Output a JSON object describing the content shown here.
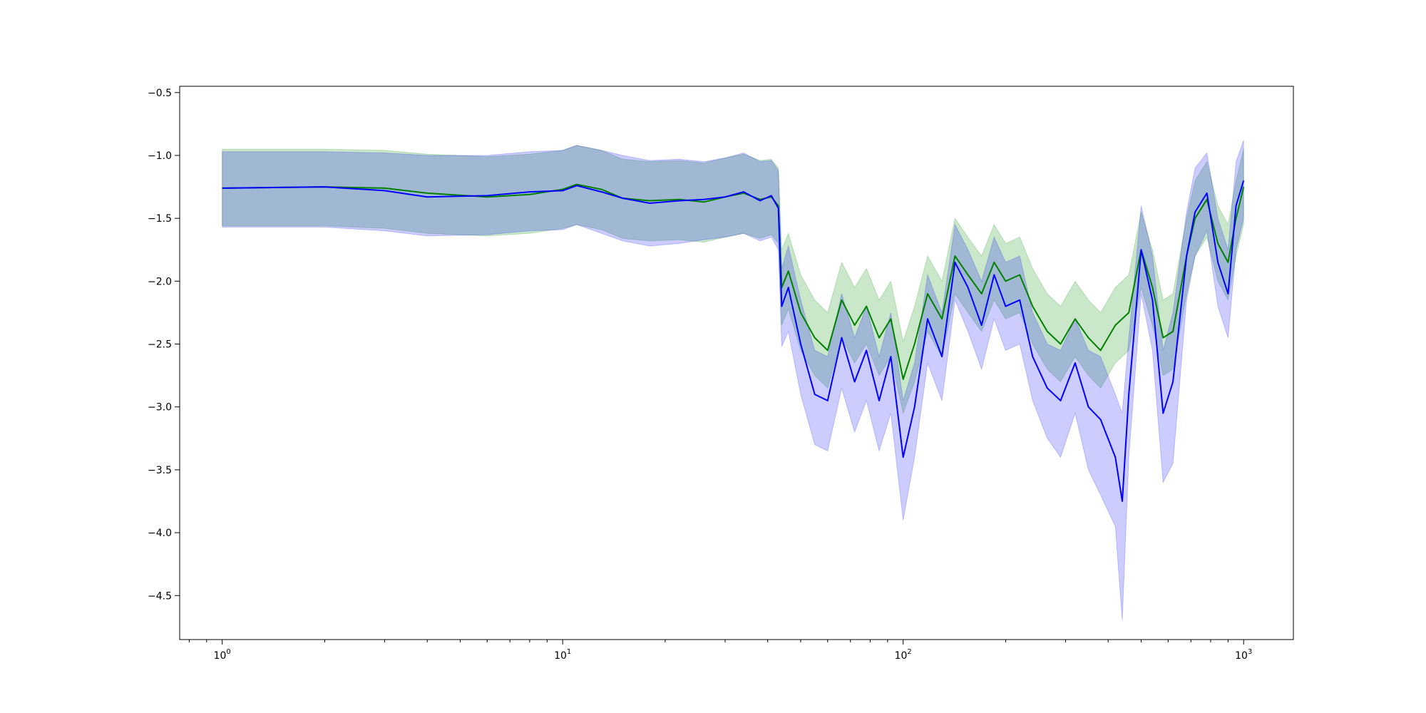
{
  "chart_data": {
    "type": "line",
    "title": "",
    "xlabel": "",
    "ylabel": "",
    "x_scale": "log",
    "xlim": [
      0.75,
      1400
    ],
    "ylim": [
      -4.85,
      -0.45
    ],
    "grid": false,
    "legend": "none",
    "x_ticks": [
      {
        "value": 1,
        "base": "10",
        "exp": "0"
      },
      {
        "value": 10,
        "base": "10",
        "exp": "1"
      },
      {
        "value": 100,
        "base": "10",
        "exp": "2"
      },
      {
        "value": 1000,
        "base": "10",
        "exp": "3"
      }
    ],
    "y_ticks": [
      {
        "value": -0.5,
        "label": "−0.5"
      },
      {
        "value": -1.0,
        "label": "−1.0"
      },
      {
        "value": -1.5,
        "label": "−1.5"
      },
      {
        "value": -2.0,
        "label": "−2.0"
      },
      {
        "value": -2.5,
        "label": "−2.5"
      },
      {
        "value": -3.0,
        "label": "−3.0"
      },
      {
        "value": -3.5,
        "label": "−3.5"
      },
      {
        "value": -4.0,
        "label": "−4.0"
      },
      {
        "value": -4.5,
        "label": "−4.5"
      }
    ],
    "series": [
      {
        "color": "#008000",
        "band_color": "#2ca02c",
        "band_opacity": 0.25,
        "x": [
          1,
          2,
          3,
          4,
          6,
          8,
          10,
          11,
          13,
          15,
          18,
          22,
          26,
          30,
          34,
          38,
          41,
          43,
          44,
          46,
          50,
          55,
          60,
          66,
          72,
          78,
          85,
          92,
          100,
          108,
          118,
          130,
          142,
          155,
          170,
          185,
          200,
          220,
          240,
          265,
          290,
          320,
          350,
          380,
          420,
          460,
          500,
          540,
          580,
          620,
          680,
          720,
          780,
          840,
          900,
          950,
          1000
        ],
        "y": [
          -1.26,
          -1.25,
          -1.26,
          -1.3,
          -1.33,
          -1.31,
          -1.27,
          -1.23,
          -1.27,
          -1.34,
          -1.36,
          -1.35,
          -1.37,
          -1.33,
          -1.3,
          -1.35,
          -1.33,
          -1.4,
          -2.05,
          -1.92,
          -2.25,
          -2.45,
          -2.55,
          -2.15,
          -2.35,
          -2.2,
          -2.45,
          -2.3,
          -2.78,
          -2.5,
          -2.1,
          -2.3,
          -1.8,
          -1.95,
          -2.1,
          -1.85,
          -2.0,
          -1.95,
          -2.2,
          -2.4,
          -2.5,
          -2.3,
          -2.45,
          -2.55,
          -2.35,
          -2.25,
          -1.75,
          -2.05,
          -2.45,
          -2.4,
          -1.8,
          -1.5,
          -1.35,
          -1.7,
          -1.85,
          -1.5,
          -1.25
        ],
        "lower": [
          -1.56,
          -1.56,
          -1.58,
          -1.62,
          -1.64,
          -1.62,
          -1.58,
          -1.55,
          -1.59,
          -1.66,
          -1.68,
          -1.67,
          -1.69,
          -1.65,
          -1.62,
          -1.66,
          -1.63,
          -1.7,
          -2.35,
          -2.22,
          -2.55,
          -2.75,
          -2.85,
          -2.45,
          -2.65,
          -2.5,
          -2.75,
          -2.6,
          -3.05,
          -2.8,
          -2.4,
          -2.6,
          -2.1,
          -2.25,
          -2.4,
          -2.15,
          -2.3,
          -2.25,
          -2.5,
          -2.7,
          -2.8,
          -2.6,
          -2.75,
          -2.85,
          -2.65,
          -2.55,
          -2.05,
          -2.35,
          -2.75,
          -2.7,
          -2.1,
          -1.8,
          -1.65,
          -2.0,
          -2.15,
          -1.8,
          -1.55
        ],
        "upper": [
          -0.95,
          -0.95,
          -0.96,
          -0.99,
          -1.01,
          -0.99,
          -0.96,
          -0.92,
          -0.96,
          -1.03,
          -1.05,
          -1.04,
          -1.06,
          -1.02,
          -0.99,
          -1.04,
          -1.03,
          -1.1,
          -1.75,
          -1.62,
          -1.95,
          -2.15,
          -2.25,
          -1.85,
          -2.05,
          -1.9,
          -2.15,
          -2.0,
          -2.48,
          -2.2,
          -1.8,
          -2.0,
          -1.5,
          -1.65,
          -1.8,
          -1.55,
          -1.7,
          -1.65,
          -1.9,
          -2.1,
          -2.2,
          -2.0,
          -2.15,
          -2.25,
          -2.05,
          -1.95,
          -1.45,
          -1.75,
          -2.15,
          -2.1,
          -1.5,
          -1.2,
          -1.05,
          -1.4,
          -1.55,
          -1.2,
          -0.95
        ]
      },
      {
        "color": "#0000ff",
        "band_color": "#0000ff",
        "band_opacity": 0.2,
        "x": [
          1,
          2,
          3,
          4,
          6,
          8,
          10,
          11,
          13,
          15,
          18,
          22,
          26,
          30,
          34,
          38,
          41,
          43,
          44,
          46,
          50,
          55,
          60,
          66,
          72,
          78,
          85,
          92,
          100,
          108,
          118,
          130,
          142,
          155,
          170,
          185,
          200,
          220,
          240,
          265,
          290,
          320,
          350,
          380,
          420,
          440,
          460,
          500,
          540,
          580,
          620,
          680,
          720,
          780,
          840,
          900,
          950,
          1000
        ],
        "y": [
          -1.26,
          -1.25,
          -1.28,
          -1.33,
          -1.32,
          -1.29,
          -1.28,
          -1.24,
          -1.29,
          -1.34,
          -1.38,
          -1.36,
          -1.35,
          -1.33,
          -1.29,
          -1.36,
          -1.32,
          -1.42,
          -2.2,
          -2.05,
          -2.5,
          -2.9,
          -2.95,
          -2.45,
          -2.8,
          -2.55,
          -2.95,
          -2.6,
          -3.4,
          -3.0,
          -2.3,
          -2.6,
          -1.85,
          -2.05,
          -2.35,
          -1.95,
          -2.2,
          -2.15,
          -2.6,
          -2.85,
          -2.95,
          -2.65,
          -3.0,
          -3.1,
          -3.4,
          -3.75,
          -2.9,
          -1.75,
          -2.15,
          -3.05,
          -2.8,
          -1.8,
          -1.45,
          -1.3,
          -1.85,
          -2.1,
          -1.4,
          -1.2
        ],
        "lower": [
          -1.57,
          -1.57,
          -1.6,
          -1.64,
          -1.63,
          -1.6,
          -1.59,
          -1.55,
          -1.62,
          -1.68,
          -1.72,
          -1.7,
          -1.67,
          -1.65,
          -1.62,
          -1.68,
          -1.65,
          -1.75,
          -2.52,
          -2.4,
          -2.9,
          -3.3,
          -3.35,
          -2.85,
          -3.2,
          -2.95,
          -3.35,
          -3.05,
          -3.9,
          -3.4,
          -2.65,
          -2.95,
          -2.15,
          -2.4,
          -2.7,
          -2.3,
          -2.55,
          -2.5,
          -2.95,
          -3.25,
          -3.4,
          -3.05,
          -3.5,
          -3.7,
          -3.95,
          -4.7,
          -3.4,
          -2.1,
          -2.55,
          -3.6,
          -3.45,
          -2.15,
          -1.8,
          -1.6,
          -2.2,
          -2.45,
          -1.75,
          -1.5
        ],
        "upper": [
          -0.97,
          -0.97,
          -0.98,
          -1.0,
          -1.0,
          -0.97,
          -0.96,
          -0.92,
          -0.96,
          -1.0,
          -1.04,
          -1.03,
          -1.05,
          -1.02,
          -0.98,
          -1.05,
          -1.04,
          -1.12,
          -1.9,
          -1.72,
          -2.15,
          -2.55,
          -2.6,
          -2.1,
          -2.45,
          -2.2,
          -2.6,
          -2.25,
          -2.95,
          -2.65,
          -1.95,
          -2.25,
          -1.55,
          -1.75,
          -2.0,
          -1.65,
          -1.85,
          -1.8,
          -2.25,
          -2.5,
          -2.55,
          -2.3,
          -2.55,
          -2.6,
          -2.9,
          -3.05,
          -2.45,
          -1.4,
          -1.8,
          -2.55,
          -2.25,
          -1.45,
          -1.1,
          -0.98,
          -1.5,
          -1.75,
          -1.05,
          -0.88
        ]
      }
    ]
  }
}
